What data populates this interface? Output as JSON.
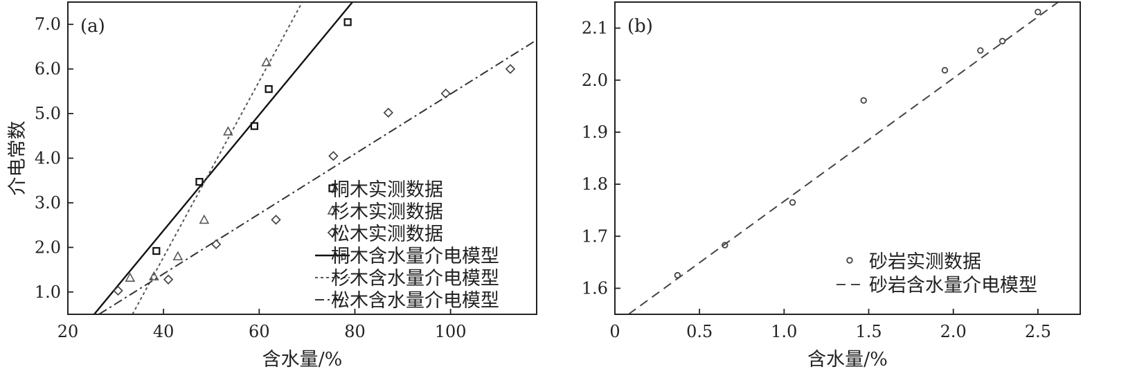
{
  "chart_data": [
    {
      "type": "scatter",
      "panel_label": "(a)",
      "xlabel": "含水量/%",
      "ylabel": "介电常数",
      "xlim": [
        20,
        118
      ],
      "ylim": [
        0.5,
        7.5
      ],
      "xticks": [
        20,
        40,
        60,
        80,
        100
      ],
      "yticks": [
        1.0,
        2.0,
        3.0,
        4.0,
        5.0,
        6.0,
        7.0
      ],
      "xtick_labels": [
        "20",
        "40",
        "60",
        "80",
        "100"
      ],
      "ytick_labels": [
        "1.0",
        "2.0",
        "3.0",
        "4.0",
        "5.0",
        "6.0",
        "7.0"
      ],
      "grid": false,
      "legend_position": "bottom-right",
      "series": [
        {
          "name": "桐木实测数据",
          "kind": "points",
          "marker": "square",
          "points": [
            [
              38.5,
              1.92
            ],
            [
              47.5,
              3.47
            ],
            [
              59.0,
              4.72
            ],
            [
              62.0,
              5.55
            ],
            [
              78.5,
              7.05
            ]
          ]
        },
        {
          "name": "杉木实测数据",
          "kind": "points",
          "marker": "triangle",
          "points": [
            [
              33.0,
              1.32
            ],
            [
              38.0,
              1.35
            ],
            [
              43.0,
              1.8
            ],
            [
              48.5,
              2.62
            ],
            [
              53.5,
              4.6
            ],
            [
              61.5,
              6.15
            ]
          ]
        },
        {
          "name": "松木实测数据",
          "kind": "points",
          "marker": "diamond",
          "points": [
            [
              30.5,
              1.03
            ],
            [
              41.0,
              1.28
            ],
            [
              51.0,
              2.07
            ],
            [
              63.5,
              2.62
            ],
            [
              75.5,
              4.05
            ],
            [
              87.0,
              5.02
            ],
            [
              99.0,
              5.45
            ],
            [
              112.5,
              6.0
            ]
          ]
        },
        {
          "name": "桐木含水量介电模型",
          "kind": "line",
          "dash": "solid",
          "points": [
            [
              25.5,
              0.5
            ],
            [
              79.5,
              7.5
            ]
          ]
        },
        {
          "name": "杉木含水量介电模型",
          "kind": "line",
          "dash": "dotted",
          "points": [
            [
              33.5,
              0.5
            ],
            [
              69.0,
              7.5
            ]
          ]
        },
        {
          "name": "松木含水量介电模型",
          "kind": "line",
          "dash": "dashdot",
          "points": [
            [
              26.5,
              0.5
            ],
            [
              118.0,
              6.65
            ]
          ]
        }
      ]
    },
    {
      "type": "scatter",
      "panel_label": "(b)",
      "xlabel": "含水量/%",
      "ylabel": "",
      "xlim": [
        0,
        2.75
      ],
      "ylim": [
        1.55,
        2.15
      ],
      "xticks": [
        0,
        0.5,
        1.0,
        1.5,
        2.0,
        2.5
      ],
      "yticks": [
        1.6,
        1.7,
        1.8,
        1.9,
        2.0,
        2.1
      ],
      "xtick_labels": [
        "0",
        "0.5",
        "1.0",
        "1.5",
        "2.0",
        "2.5"
      ],
      "ytick_labels": [
        "1.6",
        "1.7",
        "1.8",
        "1.9",
        "2.0",
        "2.1"
      ],
      "grid": false,
      "legend_position": "bottom-right",
      "series": [
        {
          "name": "砂岩实测数据",
          "kind": "points",
          "marker": "circle",
          "points": [
            [
              0.37,
              1.625
            ],
            [
              0.65,
              1.683
            ],
            [
              1.05,
              1.765
            ],
            [
              1.47,
              1.961
            ],
            [
              1.95,
              2.019
            ],
            [
              2.16,
              2.057
            ],
            [
              2.29,
              2.075
            ],
            [
              2.5,
              2.131
            ]
          ]
        },
        {
          "name": "砂岩含水量介电模型",
          "kind": "line",
          "dash": "dashed",
          "points": [
            [
              0.08,
              1.55
            ],
            [
              2.62,
              2.15
            ]
          ]
        }
      ]
    }
  ]
}
